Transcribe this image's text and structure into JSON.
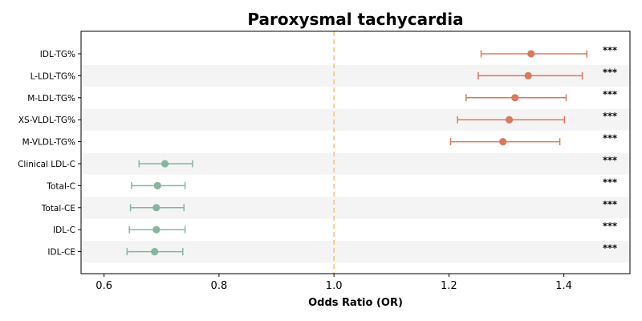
{
  "chart_data": {
    "type": "forest",
    "title": "Paroxysmal tachycardia",
    "xlabel": "Odds Ratio (OR)",
    "xlim": [
      0.56,
      1.515
    ],
    "xticks": [
      0.6,
      0.8,
      1.0,
      1.2,
      1.4
    ],
    "xtick_labels": [
      "0.6",
      "0.8",
      "1.0",
      "1.2",
      "1.4"
    ],
    "reference_line": 1.0,
    "reference_color": "#f5c27e",
    "colors": {
      "positive": "#d97a5e",
      "negative": "#86b59e",
      "band": "#f4f4f4"
    },
    "rows": [
      {
        "label": "IDL-TG%",
        "or": 1.343,
        "lo": 1.256,
        "hi": 1.44,
        "sig": "***"
      },
      {
        "label": "L-LDL-TG%",
        "or": 1.338,
        "lo": 1.251,
        "hi": 1.432,
        "sig": "***"
      },
      {
        "label": "M-LDL-TG%",
        "or": 1.315,
        "lo": 1.23,
        "hi": 1.404,
        "sig": "***"
      },
      {
        "label": "XS-VLDL-TG%",
        "or": 1.305,
        "lo": 1.215,
        "hi": 1.401,
        "sig": "***"
      },
      {
        "label": "M-VLDL-TG%",
        "or": 1.294,
        "lo": 1.203,
        "hi": 1.393,
        "sig": "***"
      },
      {
        "label": "Clinical LDL-C",
        "or": 0.706,
        "lo": 0.661,
        "hi": 0.754,
        "sig": "***"
      },
      {
        "label": "Total-C",
        "or": 0.693,
        "lo": 0.648,
        "hi": 0.741,
        "sig": "***"
      },
      {
        "label": "Total-CE",
        "or": 0.691,
        "lo": 0.646,
        "hi": 0.739,
        "sig": "***"
      },
      {
        "label": "IDL-C",
        "or": 0.691,
        "lo": 0.644,
        "hi": 0.741,
        "sig": "***"
      },
      {
        "label": "IDL-CE",
        "or": 0.688,
        "lo": 0.64,
        "hi": 0.737,
        "sig": "***"
      }
    ]
  }
}
